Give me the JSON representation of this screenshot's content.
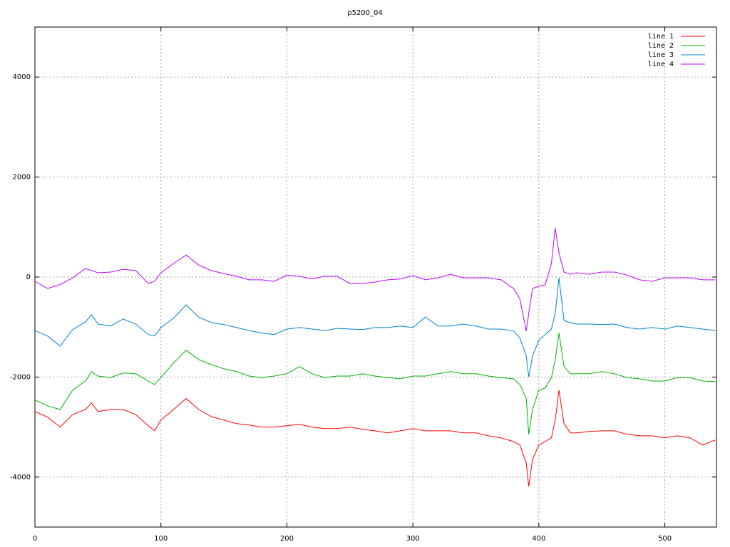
{
  "chart_data": {
    "type": "line",
    "title": "p5200_04",
    "x": [
      0,
      10,
      20,
      30,
      40,
      45,
      50,
      60,
      70,
      80,
      90,
      95,
      100,
      110,
      120,
      130,
      140,
      150,
      160,
      170,
      180,
      190,
      200,
      210,
      220,
      230,
      240,
      250,
      260,
      270,
      280,
      290,
      300,
      310,
      320,
      330,
      340,
      350,
      360,
      370,
      380,
      385,
      390,
      392,
      395,
      400,
      405,
      410,
      413,
      416,
      420,
      425,
      430,
      440,
      450,
      460,
      470,
      480,
      490,
      500,
      510,
      520,
      530,
      540
    ],
    "series": [
      {
        "name": "line 1",
        "color": "#ff0000",
        "values": [
          -2690,
          -2800,
          -3000,
          -2750,
          -2650,
          -2520,
          -2690,
          -2650,
          -2650,
          -2750,
          -2975,
          -3075,
          -2860,
          -2650,
          -2430,
          -2650,
          -2790,
          -2860,
          -2930,
          -2960,
          -3000,
          -3000,
          -2975,
          -2945,
          -3000,
          -3030,
          -3030,
          -3000,
          -3045,
          -3075,
          -3115,
          -3075,
          -3030,
          -3075,
          -3075,
          -3075,
          -3115,
          -3115,
          -3175,
          -3215,
          -3290,
          -3360,
          -3715,
          -4185,
          -3645,
          -3360,
          -3290,
          -3215,
          -2860,
          -2260,
          -2930,
          -3115,
          -3115,
          -3090,
          -3075,
          -3075,
          -3145,
          -3175,
          -3175,
          -3215,
          -3175,
          -3215,
          -3360,
          -3260
        ]
      },
      {
        "name": "line 2",
        "color": "#00b000",
        "values": [
          -2460,
          -2575,
          -2650,
          -2260,
          -2080,
          -1890,
          -1980,
          -2010,
          -1920,
          -1935,
          -2080,
          -2150,
          -2010,
          -1720,
          -1465,
          -1650,
          -1750,
          -1835,
          -1890,
          -1980,
          -2010,
          -1980,
          -1935,
          -1790,
          -1935,
          -2010,
          -1980,
          -1980,
          -1935,
          -1980,
          -2010,
          -2035,
          -1980,
          -1980,
          -1935,
          -1890,
          -1935,
          -1935,
          -1980,
          -2010,
          -2035,
          -2150,
          -2430,
          -3145,
          -2650,
          -2260,
          -2220,
          -2010,
          -1650,
          -1120,
          -1790,
          -1935,
          -1935,
          -1935,
          -1890,
          -1935,
          -2010,
          -2035,
          -2080,
          -2080,
          -2010,
          -2010,
          -2080,
          -2090
        ]
      },
      {
        "name": "line 3",
        "color": "#0080d0",
        "values": [
          -1070,
          -1180,
          -1380,
          -1050,
          -900,
          -750,
          -940,
          -980,
          -840,
          -940,
          -1150,
          -1180,
          -1010,
          -825,
          -555,
          -800,
          -910,
          -950,
          -1010,
          -1070,
          -1120,
          -1150,
          -1040,
          -1010,
          -1040,
          -1070,
          -1025,
          -1040,
          -1050,
          -1010,
          -1010,
          -980,
          -1010,
          -800,
          -980,
          -980,
          -940,
          -980,
          -1040,
          -1040,
          -1080,
          -1220,
          -1580,
          -2000,
          -1580,
          -1265,
          -1150,
          -1040,
          -725,
          -15,
          -870,
          -910,
          -940,
          -940,
          -950,
          -940,
          -1010,
          -1040,
          -1010,
          -1040,
          -980,
          -1010,
          -1040,
          -1070
        ]
      },
      {
        "name": "line 4",
        "color": "#c000ff",
        "values": [
          -85,
          -230,
          -150,
          -15,
          170,
          130,
          85,
          100,
          155,
          130,
          -130,
          -85,
          85,
          270,
          440,
          240,
          130,
          70,
          15,
          -55,
          -55,
          -85,
          40,
          15,
          -40,
          15,
          15,
          -130,
          -130,
          -100,
          -55,
          -40,
          30,
          -55,
          -15,
          55,
          -15,
          -15,
          -15,
          -55,
          -230,
          -440,
          -1080,
          -725,
          -230,
          -185,
          -155,
          270,
          980,
          485,
          100,
          55,
          85,
          55,
          100,
          100,
          40,
          -55,
          -85,
          -15,
          -15,
          -15,
          -55,
          -55
        ]
      }
    ],
    "xlim": [
      0,
      541
    ],
    "ylim": [
      -5000,
      5000
    ],
    "xticks": [
      0,
      100,
      200,
      300,
      400,
      500
    ],
    "yticks": [
      -4000,
      -2000,
      0,
      2000,
      4000
    ],
    "grid": true,
    "legend": "top-right"
  }
}
